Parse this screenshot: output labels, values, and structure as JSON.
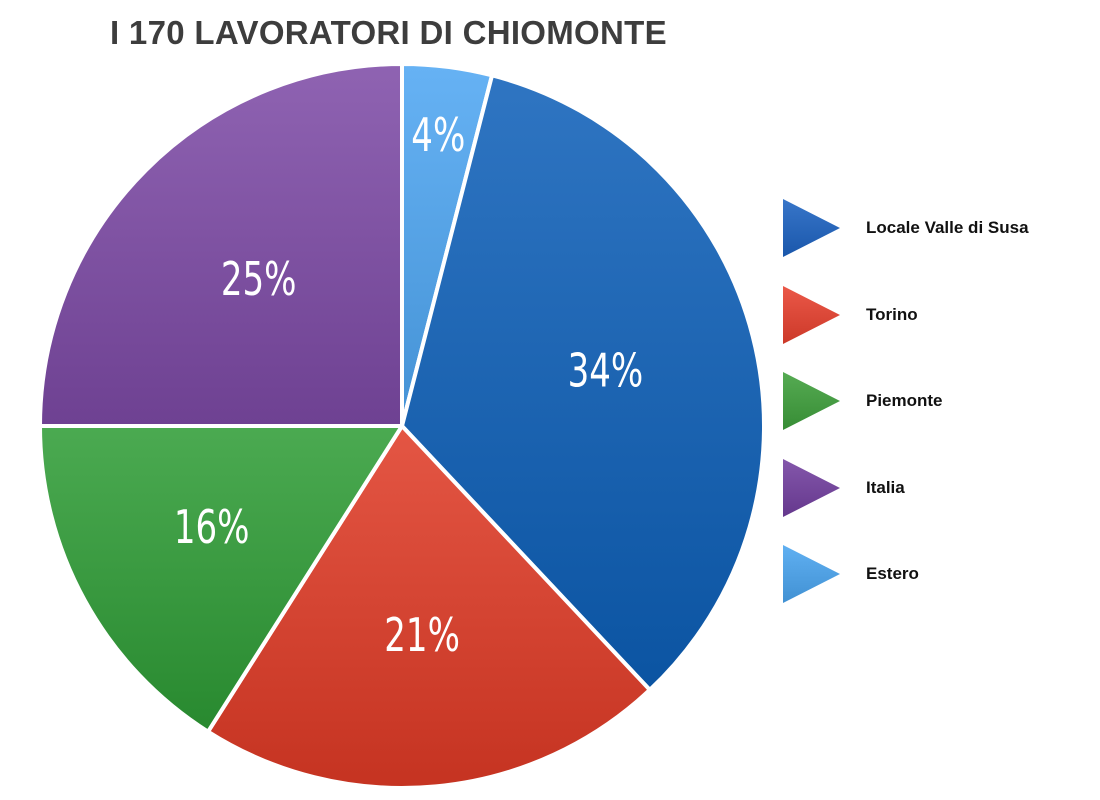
{
  "chart_data": {
    "type": "pie",
    "title": "I 170 LAVORATORI DI CHIOMONTE",
    "unit": "%",
    "categories": [
      "Estero",
      "Locale Valle di Susa",
      "Torino",
      "Piemonte",
      "Italia"
    ],
    "values": [
      4,
      34,
      21,
      16,
      25
    ],
    "labels": [
      "4%",
      "34%",
      "21%",
      "16%",
      "25%"
    ],
    "colors": [
      "#4da6f2",
      "#0d5fb8",
      "#e03a26",
      "#2e9c35",
      "#7d4aa6"
    ],
    "legend_position": "right",
    "legend": [
      {
        "label": "Locale Valle di Susa",
        "color": "#1d63c2"
      },
      {
        "label": "Torino",
        "color": "#e8412f"
      },
      {
        "label": "Piemonte",
        "color": "#3fa03c"
      },
      {
        "label": "Italia",
        "color": "#7340a0"
      },
      {
        "label": "Estero",
        "color": "#4aa5f0"
      }
    ]
  }
}
